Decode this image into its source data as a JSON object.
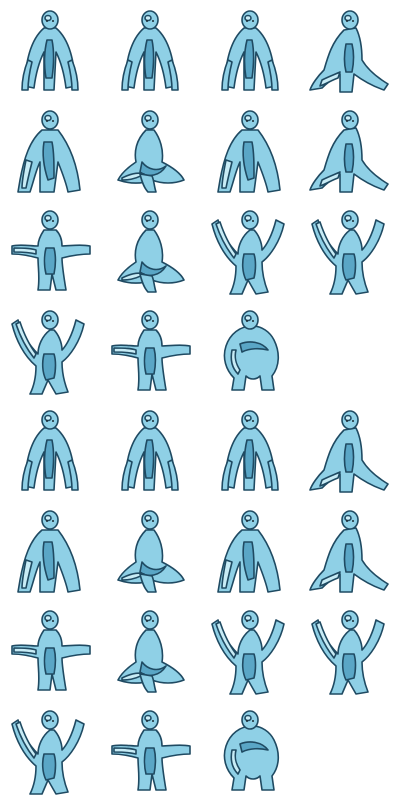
{
  "sheet": {
    "rows": 8,
    "columns": 4,
    "colors": {
      "background": "#ffffff",
      "body": "#8fd0e6",
      "shade": "#5aa6c6",
      "highlight": "#c8ecf6",
      "outline": "#1f4a62",
      "eye": "#1b2a33"
    },
    "frames": [
      [
        "stand",
        "stand",
        "stand",
        "crouch"
      ],
      [
        "lean",
        "sit",
        "lean",
        "crouch"
      ],
      [
        "arms-out",
        "sit",
        "wave",
        "wave"
      ],
      [
        "wave",
        "arms-out",
        "curl",
        "empty"
      ],
      [
        "stand",
        "stand",
        "stand",
        "crouch"
      ],
      [
        "lean",
        "sit",
        "lean",
        "crouch"
      ],
      [
        "arms-out",
        "sit",
        "wave",
        "wave"
      ],
      [
        "wave",
        "arms-out",
        "curl",
        "empty"
      ]
    ]
  }
}
